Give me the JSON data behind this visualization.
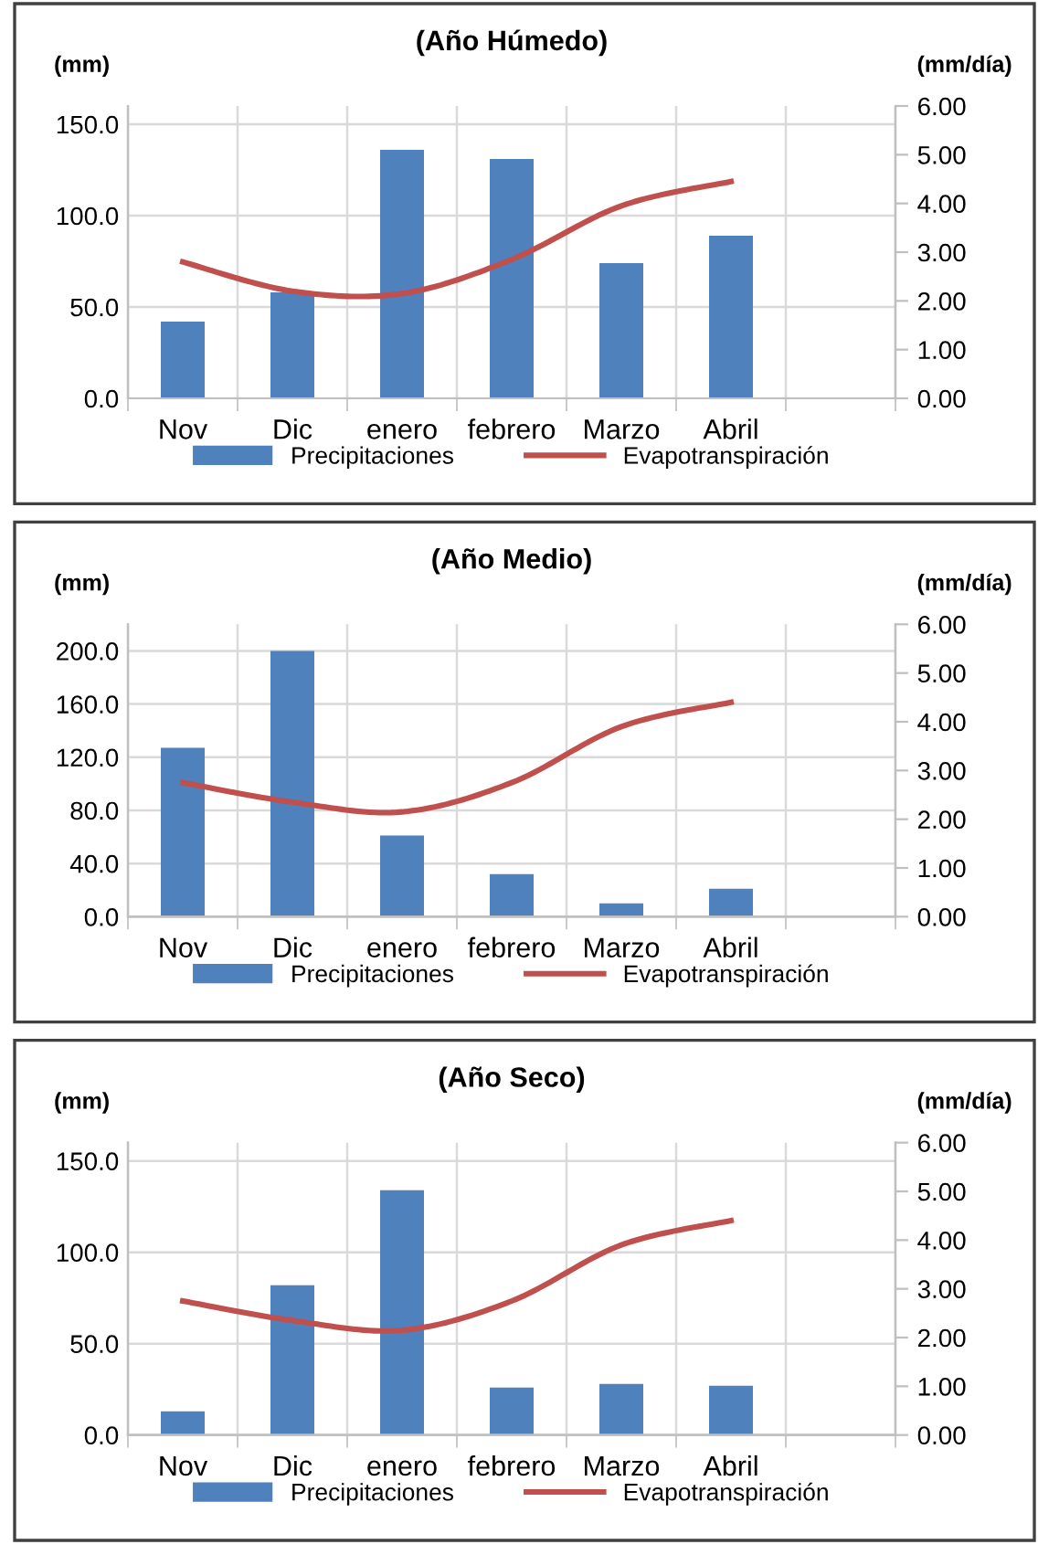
{
  "chart_data": [
    {
      "type": "bar",
      "title": "(Año Húmedo)",
      "ylabel": "(mm)",
      "y2label": "(mm/día)",
      "categories": [
        "Nov",
        "Dic",
        "enero",
        "febrero",
        "Marzo",
        "Abril",
        null
      ],
      "series": [
        {
          "name": "Precipitaciones",
          "color": "#4f81bd",
          "values": [
            42,
            58,
            136,
            131,
            74,
            89,
            null
          ]
        },
        {
          "name": "Evapotranspiración",
          "type": "line",
          "axis": "y2",
          "color": "#c0504d",
          "values": [
            2.8,
            2.2,
            2.15,
            2.85,
            3.95,
            4.45,
            null
          ]
        }
      ],
      "ylim": [
        0,
        160
      ],
      "yticks": [
        {
          "value": 0,
          "label": "0.0"
        },
        {
          "value": 50,
          "label": "50.0"
        },
        {
          "value": 100,
          "label": "100.0"
        },
        {
          "value": 150,
          "label": "150.0"
        }
      ],
      "y2lim": [
        0,
        6
      ],
      "y2ticks": [
        {
          "value": 0,
          "label": "0.00"
        },
        {
          "value": 1,
          "label": "1.00"
        },
        {
          "value": 2,
          "label": "2.00"
        },
        {
          "value": 3,
          "label": "3.00"
        },
        {
          "value": 4,
          "label": "4.00"
        },
        {
          "value": 5,
          "label": "5.00"
        },
        {
          "value": 6,
          "label": "6.00"
        }
      ],
      "grid": true,
      "legend": "bottom",
      "line_style": "solid",
      "marker": "none"
    },
    {
      "type": "bar",
      "title": "(Año Medio)",
      "ylabel": "(mm)",
      "y2label": "(mm/día)",
      "categories": [
        "Nov",
        "Dic",
        "enero",
        "febrero",
        "Marzo",
        "Abril",
        null
      ],
      "series": [
        {
          "name": "Precipitaciones",
          "color": "#4f81bd",
          "values": [
            127,
            200,
            61,
            32,
            10,
            21,
            null
          ]
        },
        {
          "name": "Evapotranspiración",
          "type": "line",
          "axis": "y2",
          "color": "#c0504d",
          "values": [
            2.75,
            2.35,
            2.15,
            2.75,
            3.9,
            4.4,
            null
          ]
        }
      ],
      "ylim": [
        0,
        220
      ],
      "yticks": [
        {
          "value": 0,
          "label": "0.0"
        },
        {
          "value": 40,
          "label": "40.0"
        },
        {
          "value": 80,
          "label": "80.0"
        },
        {
          "value": 120,
          "label": "120.0"
        },
        {
          "value": 160,
          "label": "160.0"
        },
        {
          "value": 200,
          "label": "200.0"
        }
      ],
      "y2lim": [
        0,
        6
      ],
      "y2ticks": [
        {
          "value": 0,
          "label": "0.00"
        },
        {
          "value": 1,
          "label": "1.00"
        },
        {
          "value": 2,
          "label": "2.00"
        },
        {
          "value": 3,
          "label": "3.00"
        },
        {
          "value": 4,
          "label": "4.00"
        },
        {
          "value": 5,
          "label": "5.00"
        },
        {
          "value": 6,
          "label": "6.00"
        }
      ],
      "grid": true,
      "legend": "bottom",
      "line_style": "solid",
      "marker": "none"
    },
    {
      "type": "bar",
      "title": "(Año Seco)",
      "ylabel": "(mm)",
      "y2label": "(mm/día)",
      "categories": [
        "Nov",
        "Dic",
        "enero",
        "febrero",
        "Marzo",
        "Abril",
        null
      ],
      "series": [
        {
          "name": "Precipitaciones",
          "color": "#4f81bd",
          "values": [
            13,
            82,
            134,
            26,
            28,
            27,
            null
          ]
        },
        {
          "name": "Evapotranspiración",
          "type": "line",
          "axis": "y2",
          "color": "#c0504d",
          "values": [
            2.75,
            2.35,
            2.15,
            2.75,
            3.9,
            4.4,
            null
          ]
        }
      ],
      "ylim": [
        0,
        160
      ],
      "yticks": [
        {
          "value": 0,
          "label": "0.0"
        },
        {
          "value": 50,
          "label": "50.0"
        },
        {
          "value": 100,
          "label": "100.0"
        },
        {
          "value": 150,
          "label": "150.0"
        }
      ],
      "y2lim": [
        0,
        6
      ],
      "y2ticks": [
        {
          "value": 0,
          "label": "0.00"
        },
        {
          "value": 1,
          "label": "1.00"
        },
        {
          "value": 2,
          "label": "2.00"
        },
        {
          "value": 3,
          "label": "3.00"
        },
        {
          "value": 4,
          "label": "4.00"
        },
        {
          "value": 5,
          "label": "5.00"
        },
        {
          "value": 6,
          "label": "6.00"
        }
      ],
      "grid": true,
      "legend": "bottom",
      "line_style": "solid",
      "marker": "none"
    }
  ]
}
